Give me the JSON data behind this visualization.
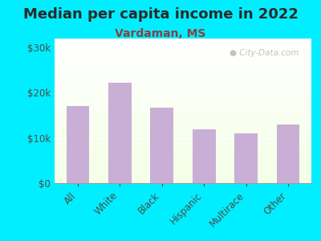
{
  "title": "Median per capita income in 2022",
  "subtitle": "Vardaman, MS",
  "categories": [
    "All",
    "White",
    "Black",
    "Hispanic",
    "Multirace",
    "Other"
  ],
  "values": [
    17000,
    22200,
    16700,
    12000,
    11000,
    13000
  ],
  "bar_color": "#c9aed6",
  "background_outer": "#00eeff",
  "title_color": "#2a2a2a",
  "subtitle_color": "#8b4040",
  "tick_color": "#4a4a4a",
  "ytick_labels": [
    "$0",
    "$10k",
    "$20k",
    "$30k"
  ],
  "ytick_values": [
    0,
    10000,
    20000,
    30000
  ],
  "ylim": [
    0,
    32000
  ],
  "watermark_text": "City-Data.com",
  "title_fontsize": 13,
  "subtitle_fontsize": 10,
  "tick_fontsize": 8.5
}
